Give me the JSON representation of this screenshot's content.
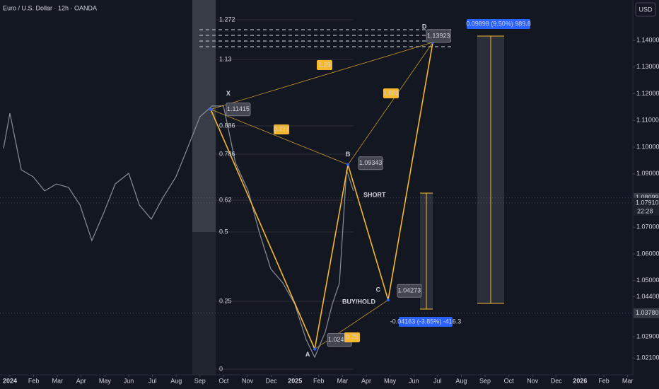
{
  "header": {
    "symbol": "Euro / U.S. Dollar · 12h · OANDA",
    "currency": "USD"
  },
  "chart_data": {
    "type": "line",
    "xlim": [
      -0.417,
      26.22
    ],
    "ylim": [
      1.0147,
      1.1551
    ],
    "xticks": [
      {
        "value": 0,
        "label": "2024"
      },
      {
        "value": 1,
        "label": "Feb"
      },
      {
        "value": 2,
        "label": "Mar"
      },
      {
        "value": 3,
        "label": "Apr"
      },
      {
        "value": 4,
        "label": "May"
      },
      {
        "value": 5,
        "label": "Jun"
      },
      {
        "value": 6,
        "label": "Jul"
      },
      {
        "value": 7,
        "label": "Aug"
      },
      {
        "value": 8,
        "label": "Sep"
      },
      {
        "value": 9,
        "label": "Oct"
      },
      {
        "value": 10,
        "label": "Nov"
      },
      {
        "value": 11,
        "label": "Dec"
      },
      {
        "value": 12,
        "label": "2025"
      },
      {
        "value": 13,
        "label": "Feb"
      },
      {
        "value": 14,
        "label": "Mar"
      },
      {
        "value": 15,
        "label": "Apr"
      },
      {
        "value": 16,
        "label": "May"
      },
      {
        "value": 17,
        "label": "Jun"
      },
      {
        "value": 18,
        "label": "Jul"
      },
      {
        "value": 19,
        "label": "Aug"
      },
      {
        "value": 20,
        "label": "Sep"
      },
      {
        "value": 21,
        "label": "Oct"
      },
      {
        "value": 22,
        "label": "Nov"
      },
      {
        "value": 23,
        "label": "Dec"
      },
      {
        "value": 24,
        "label": "2026"
      },
      {
        "value": 25,
        "label": "Feb"
      },
      {
        "value": 26,
        "label": "Mar"
      }
    ],
    "yticks": [
      {
        "value": 1.14,
        "label": "1.14000"
      },
      {
        "value": 1.13,
        "label": "1.13000"
      },
      {
        "value": 1.12,
        "label": "1.12000"
      },
      {
        "value": 1.11,
        "label": "1.11000"
      },
      {
        "value": 1.1,
        "label": "1.10000"
      },
      {
        "value": 1.09,
        "label": "1.09000"
      },
      {
        "value": 1.07,
        "label": "1.07000"
      },
      {
        "value": 1.06,
        "label": "1.06000"
      },
      {
        "value": 1.05,
        "label": "1.05000"
      },
      {
        "value": 1.044,
        "label": "1.04400"
      },
      {
        "value": 1.029,
        "label": "1.02900"
      },
      {
        "value": 1.021,
        "label": "1.02100"
      }
    ],
    "series": [
      {
        "color": "#8a8e99",
        "x": [
          -0.27,
          0,
          0.48,
          0.98,
          1.46,
          1.96,
          2.47,
          2.95,
          3.45,
          3.96,
          4.43,
          5.0,
          5.45,
          5.95,
          6.43,
          6.99,
          7.47,
          8.0,
          8.51,
          8.99,
          9.49,
          10.03,
          10.51,
          10.98,
          11.49,
          11.99,
          12.47,
          12.83,
          13.27,
          13.57,
          13.87,
          14.17,
          14.46
        ],
        "values": [
          1.0995,
          1.1127,
          1.0915,
          1.0889,
          1.0836,
          1.0862,
          1.0849,
          1.0783,
          1.065,
          1.0756,
          1.0862,
          1.0902,
          1.0783,
          1.073,
          1.0809,
          1.0889,
          1.0995,
          1.1114,
          1.1154,
          1.1154,
          1.0942,
          1.0836,
          1.0677,
          1.0544,
          1.0491,
          1.0412,
          1.0279,
          1.0213,
          1.0306,
          1.0412,
          1.0491,
          1.0915,
          1.0836
        ]
      },
      {
        "color": "#f5b82e",
        "x": [
          8.45,
          12.83,
          14.23,
          15.92,
          17.8
        ],
        "values": [
          1.11415,
          1.02435,
          1.09343,
          1.04273,
          1.13923
        ],
        "point_labels": [
          "X",
          "A",
          "B",
          "C",
          "D"
        ]
      }
    ],
    "ratios": [
      0.777,
      1.29,
      1.881,
      0.75
    ],
    "fib_levels": [
      1.272,
      1.13,
      0.886,
      0.786,
      0.62,
      0.5,
      0.25,
      0
    ],
    "notes": [
      "SHORT",
      "BUY/HOLD"
    ],
    "measures": [
      "0.09898 (9.50%) 989.8",
      "-0.04163 (-3.85%) -416.3"
    ],
    "price_tags": [
      1.08099,
      {
        "value": 1.0791,
        "label": "1.07910"
      },
      {
        "value": 1.0378,
        "label": "1.03780"
      }
    ],
    "countdown": "22:28"
  }
}
